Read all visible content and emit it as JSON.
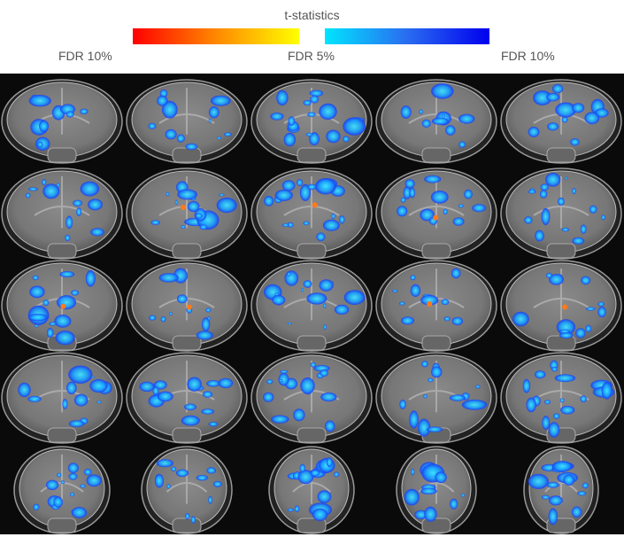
{
  "legend": {
    "title": "t-statistics",
    "labels": [
      "FDR 10%",
      "FDR 5%",
      "FDR 10%"
    ]
  }
}
